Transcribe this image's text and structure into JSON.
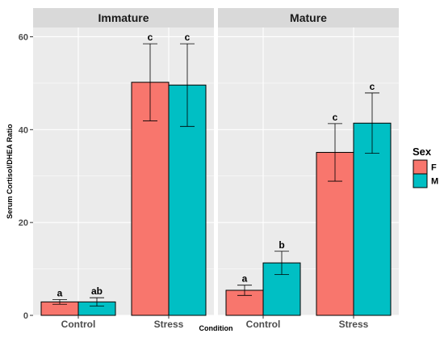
{
  "chart_data": {
    "type": "bar",
    "facets": [
      "Immature",
      "Mature"
    ],
    "categories": [
      "Control",
      "Stress"
    ],
    "xlabel": "Condition",
    "ylabel": "Serum Cortisol/DHEA Ratio",
    "ylim": [
      0,
      62
    ],
    "yticks": [
      0,
      20,
      40,
      60
    ],
    "legend": {
      "title": "Sex",
      "placement": "right",
      "entries": [
        "F",
        "M"
      ]
    },
    "series": [
      {
        "name": "F",
        "color": "#F8766D",
        "values": {
          "Immature": [
            2.9,
            50.2
          ],
          "Mature": [
            5.4,
            35.1
          ]
        },
        "err": {
          "Immature": [
            0.5,
            8.3
          ],
          "Mature": [
            1.1,
            6.2
          ]
        },
        "labels": {
          "Immature": [
            "a",
            "c"
          ],
          "Mature": [
            "a",
            "c"
          ]
        }
      },
      {
        "name": "M",
        "color": "#00BFC4",
        "values": {
          "Immature": [
            2.9,
            49.6
          ],
          "Mature": [
            11.3,
            41.4
          ]
        },
        "err": {
          "Immature": [
            0.9,
            8.9
          ],
          "Mature": [
            2.5,
            6.5
          ]
        },
        "labels": {
          "Immature": [
            "ab",
            "c"
          ],
          "Mature": [
            "b",
            "c"
          ]
        }
      }
    ],
    "grid": true,
    "colors": {
      "panel": "#EBEBEB",
      "strip": "#D9D9D9",
      "grid": "#FFFFFF"
    }
  }
}
